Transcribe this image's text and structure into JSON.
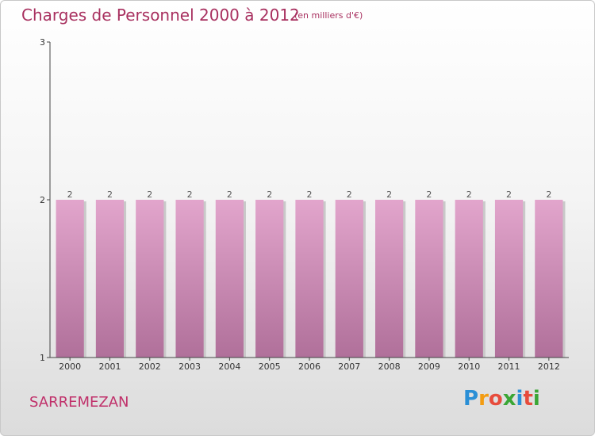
{
  "header": {
    "title": "Charges de Personnel 2000 à 2012",
    "subtitle": "(en milliers d'€)"
  },
  "footer": {
    "commune": "SARREMEZAN",
    "logo_text": "Proxiti"
  },
  "colors": {
    "title": "#a8305f",
    "bar_top": "#e2a5cc",
    "bar_bottom": "#b0709a",
    "logo_letters": [
      "#2a8fd6",
      "#f39c12",
      "#e74c3c",
      "#3aa635",
      "#2a8fd6",
      "#e74c3c",
      "#3aa635"
    ]
  },
  "chart_data": {
    "type": "bar",
    "title": "Charges de Personnel 2000 à 2012",
    "subtitle": "(en milliers d'€)",
    "categories": [
      "2000",
      "2001",
      "2002",
      "2003",
      "2004",
      "2005",
      "2006",
      "2007",
      "2008",
      "2009",
      "2010",
      "2011",
      "2012"
    ],
    "values": [
      2,
      2,
      2,
      2,
      2,
      2,
      2,
      2,
      2,
      2,
      2,
      2,
      2
    ],
    "data_labels": [
      "2",
      "2",
      "2",
      "2",
      "2",
      "2",
      "2",
      "2",
      "2",
      "2",
      "2",
      "2",
      "2"
    ],
    "ylim": [
      1,
      3
    ],
    "yticks": [
      1,
      2,
      3
    ],
    "ytick_labels": [
      "1",
      "2",
      "3"
    ],
    "grid": false,
    "xlabel": "",
    "ylabel": ""
  }
}
